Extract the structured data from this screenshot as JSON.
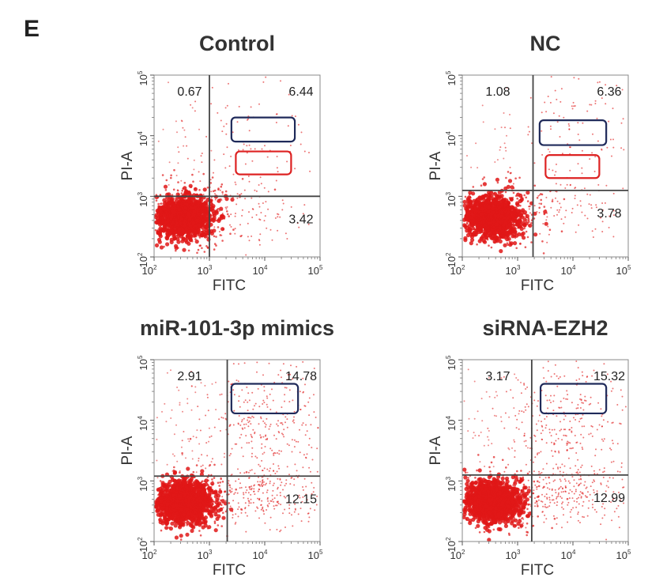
{
  "figure_label": "E",
  "chart_data": [
    {
      "type": "scatter",
      "title": "Control",
      "xlabel": "FITC",
      "ylabel": "PI-A",
      "scale": "log10",
      "xlim": [
        100,
        100000
      ],
      "ylim": [
        100,
        100000
      ],
      "x_ticks": [
        "10",
        "10",
        "10",
        "10"
      ],
      "x_tick_exponents": [
        "2",
        "3",
        "4",
        "5"
      ],
      "y_ticks": [
        "10",
        "10",
        "10",
        "10"
      ],
      "y_tick_exponents": [
        "2",
        "3",
        "4",
        "5"
      ],
      "gate": {
        "x": 1000,
        "y": 1000
      },
      "quadrants": {
        "upper_left": "0.67",
        "upper_right": "6.44",
        "lower_right": "3.42"
      },
      "highlight_boxes": [
        {
          "color": "#1f2a5a",
          "x_range": [
            2500,
            35000
          ],
          "y_range": [
            8000,
            20000
          ]
        },
        {
          "color": "#dd2222",
          "x_range": [
            3000,
            30000
          ],
          "y_range": [
            2300,
            5500
          ]
        }
      ]
    },
    {
      "type": "scatter",
      "title": "NC",
      "xlabel": "FITC",
      "ylabel": "PI-A",
      "scale": "log10",
      "xlim": [
        100,
        100000
      ],
      "ylim": [
        100,
        100000
      ],
      "x_ticks": [
        "10",
        "10",
        "10",
        "10"
      ],
      "x_tick_exponents": [
        "2",
        "3",
        "4",
        "5"
      ],
      "y_ticks": [
        "10",
        "10",
        "10",
        "10"
      ],
      "y_tick_exponents": [
        "2",
        "3",
        "4",
        "5"
      ],
      "gate": {
        "x": 1900,
        "y": 1250
      },
      "quadrants": {
        "upper_left": "1.08",
        "upper_right": "6.36",
        "lower_right": "3.78"
      },
      "highlight_boxes": [
        {
          "color": "#1f2a5a",
          "x_range": [
            2500,
            40000
          ],
          "y_range": [
            7000,
            18000
          ]
        },
        {
          "color": "#dd2222",
          "x_range": [
            3200,
            30000
          ],
          "y_range": [
            2000,
            4800
          ]
        }
      ]
    },
    {
      "type": "scatter",
      "title": "miR-101-3p mimics",
      "xlabel": "FITC",
      "ylabel": "PI-A",
      "scale": "log10",
      "xlim": [
        100,
        100000
      ],
      "ylim": [
        100,
        100000
      ],
      "x_ticks": [
        "10",
        "10",
        "10",
        "10"
      ],
      "x_tick_exponents": [
        "2",
        "3",
        "4",
        "5"
      ],
      "y_ticks": [
        "10",
        "10",
        "10",
        "10"
      ],
      "y_tick_exponents": [
        "2",
        "3",
        "4",
        "5"
      ],
      "gate": {
        "x": 2100,
        "y": 1200
      },
      "quadrants": {
        "upper_left": "2.91",
        "upper_right": "14.78",
        "lower_right": "12.15"
      },
      "highlight_boxes": [
        {
          "color": "#1f2a5a",
          "x_range": [
            2500,
            40000
          ],
          "y_range": [
            13000,
            40000
          ]
        }
      ]
    },
    {
      "type": "scatter",
      "title": "siRNA-EZH2",
      "xlabel": "FITC",
      "ylabel": "PI-A",
      "scale": "log10",
      "xlim": [
        100,
        100000
      ],
      "ylim": [
        100,
        100000
      ],
      "x_ticks": [
        "10",
        "10",
        "10",
        "10"
      ],
      "x_tick_exponents": [
        "2",
        "3",
        "4",
        "5"
      ],
      "y_ticks": [
        "10",
        "10",
        "10",
        "10"
      ],
      "y_tick_exponents": [
        "2",
        "3",
        "4",
        "5"
      ],
      "gate": {
        "x": 1800,
        "y": 1250
      },
      "quadrants": {
        "upper_left": "3.17",
        "upper_right": "15.32",
        "lower_right": "12.99"
      },
      "highlight_boxes": [
        {
          "color": "#1f2a5a",
          "x_range": [
            2600,
            40000
          ],
          "y_range": [
            13000,
            40000
          ]
        }
      ]
    }
  ],
  "colors": {
    "dots": "#e01818",
    "axis": "#333333",
    "gate_line": "#444444"
  }
}
